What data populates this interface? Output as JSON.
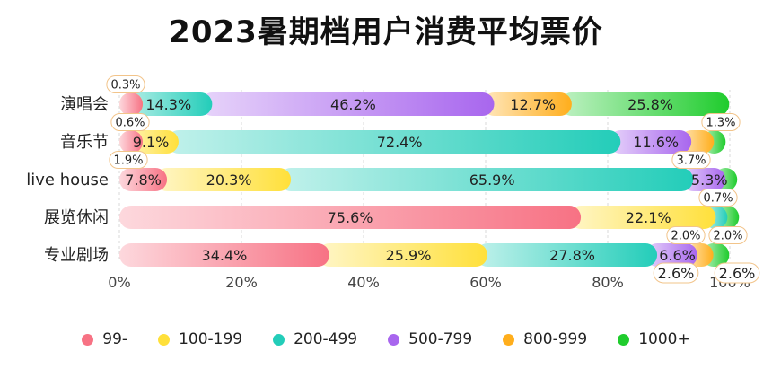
{
  "chart_data": {
    "type": "bar",
    "orientation": "horizontal",
    "stacked": "percent",
    "title": "2023暑期档用户消费平均票价",
    "categories": [
      "演唱会",
      "音乐节",
      "live house",
      "展览休闲",
      "专业剧场"
    ],
    "series": [
      {
        "name": "99-",
        "color": "#f77284",
        "values": [
          0.3,
          0.6,
          7.8,
          75.6,
          34.4
        ],
        "labels": [
          "0.3%",
          "0.6%",
          "7.8%",
          "75.6%",
          "34.4%"
        ]
      },
      {
        "name": "100-199",
        "color": "#ffe03a",
        "values": [
          0.6,
          9.1,
          20.3,
          22.1,
          25.9
        ],
        "labels": [
          "",
          "9.1%",
          "20.3%",
          "22.1%",
          "25.9%"
        ]
      },
      {
        "name": "200-499",
        "color": "#23cdb9",
        "values": [
          14.3,
          72.4,
          65.9,
          1.9,
          27.8
        ],
        "labels": [
          "14.3%",
          "72.4%",
          "65.9%",
          "1.9%",
          "27.8%"
        ]
      },
      {
        "name": "500-799",
        "color": "#a866ee",
        "values": [
          46.2,
          11.6,
          5.3,
          0.0,
          6.6
        ],
        "labels": [
          "46.2%",
          "11.6%",
          "5.3%",
          "",
          "6.6%"
        ]
      },
      {
        "name": "800-999",
        "color": "#ffae1c",
        "values": [
          12.7,
          3.7,
          0.0,
          0.0,
          2.6
        ],
        "labels": [
          "12.7%",
          "3.7%",
          "",
          "",
          "2.6%"
        ]
      },
      {
        "name": "1000+",
        "color": "#1fcc2d",
        "values": [
          25.8,
          1.3,
          0.7,
          0.4,
          2.6
        ],
        "labels": [
          "25.8%",
          "1.3%",
          "0.7%",
          "",
          "2.6%"
        ]
      }
    ],
    "callouts": [
      "0.3%",
      "0.6%",
      "1.3%",
      "1.9%",
      "3.7%",
      "0.7%",
      "2.0%",
      "2.0%",
      "2.6%",
      "2.6%"
    ],
    "xlim": [
      0,
      100
    ],
    "xticks": [
      "0%",
      "20%",
      "40%",
      "60%",
      "80%",
      "100%"
    ],
    "grid": true,
    "legend_position": "bottom"
  }
}
